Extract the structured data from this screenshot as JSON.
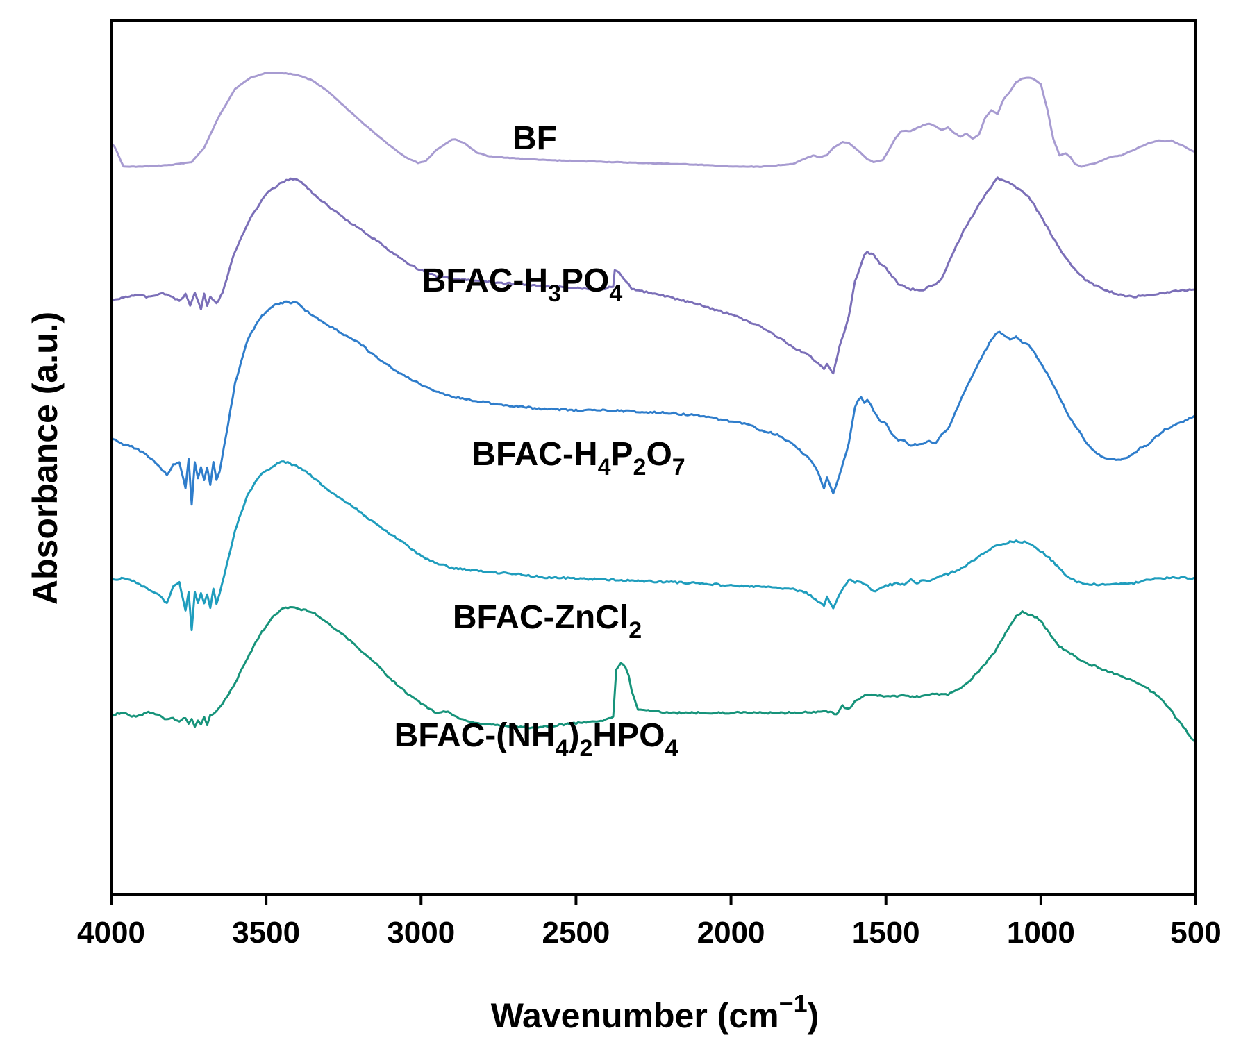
{
  "chart_data": {
    "type": "line",
    "title": "",
    "xlabel": "Wavenumber (cm",
    "xlabel_sup": "−1",
    "xlabel_close": ")",
    "ylabel": "Absorbance (a.u.)",
    "xlim": [
      4000,
      500
    ],
    "x_reversed": true,
    "y_ticks_shown": false,
    "grid": false,
    "x_ticks": [
      "4000",
      "3500",
      "3000",
      "2500",
      "2000",
      "1500",
      "1000",
      "500"
    ],
    "series": [
      {
        "name": "BF",
        "label_parts": [
          {
            "t": "BF"
          }
        ],
        "color": "#a79bd1",
        "x": [
          4000,
          3990,
          3960,
          3900,
          3800,
          3740,
          3700,
          3650,
          3600,
          3550,
          3500,
          3450,
          3400,
          3350,
          3300,
          3250,
          3200,
          3150,
          3100,
          3050,
          3010,
          2985,
          2950,
          2900,
          2890,
          2860,
          2820,
          2780,
          2700,
          2600,
          2500,
          2400,
          2300,
          2200,
          2100,
          2000,
          1900,
          1800,
          1750,
          1735,
          1715,
          1690,
          1670,
          1640,
          1620,
          1590,
          1560,
          1540,
          1510,
          1490,
          1470,
          1450,
          1420,
          1400,
          1380,
          1360,
          1340,
          1320,
          1300,
          1280,
          1260,
          1240,
          1220,
          1200,
          1180,
          1160,
          1140,
          1120,
          1100,
          1080,
          1060,
          1040,
          1020,
          1000,
          980,
          960,
          940,
          920,
          905,
          890,
          870,
          850,
          820,
          780,
          740,
          700,
          660,
          640,
          620,
          600,
          580,
          560,
          540,
          520,
          500
        ],
        "y": [
          0.25,
          0.22,
          0.0,
          0.0,
          0.02,
          0.05,
          0.2,
          0.55,
          0.83,
          0.95,
          1.0,
          1.0,
          0.98,
          0.92,
          0.8,
          0.65,
          0.5,
          0.36,
          0.22,
          0.1,
          0.04,
          0.06,
          0.18,
          0.29,
          0.29,
          0.25,
          0.15,
          0.11,
          0.09,
          0.07,
          0.06,
          0.05,
          0.04,
          0.03,
          0.02,
          0.0,
          0.0,
          0.03,
          0.1,
          0.12,
          0.1,
          0.12,
          0.2,
          0.26,
          0.25,
          0.17,
          0.08,
          0.05,
          0.07,
          0.18,
          0.3,
          0.38,
          0.38,
          0.41,
          0.44,
          0.46,
          0.43,
          0.39,
          0.42,
          0.36,
          0.32,
          0.35,
          0.3,
          0.34,
          0.52,
          0.6,
          0.56,
          0.72,
          0.8,
          0.9,
          0.94,
          0.95,
          0.93,
          0.88,
          0.62,
          0.3,
          0.12,
          0.14,
          0.1,
          0.03,
          0.0,
          0.02,
          0.04,
          0.1,
          0.12,
          0.18,
          0.24,
          0.26,
          0.28,
          0.27,
          0.28,
          0.25,
          0.22,
          0.18,
          0.15
        ],
        "y0": 240,
        "ampl": 135
      },
      {
        "name": "BFAC-H3PO4",
        "label_parts": [
          {
            "t": "BFAC-H"
          },
          {
            "t": "3",
            "sub": true
          },
          {
            "t": "PO"
          },
          {
            "t": "4",
            "sub": true
          }
        ],
        "color": "#7b6fb8",
        "x": [
          4000,
          3960,
          3920,
          3880,
          3840,
          3800,
          3780,
          3760,
          3745,
          3730,
          3710,
          3700,
          3690,
          3680,
          3660,
          3640,
          3600,
          3550,
          3500,
          3450,
          3420,
          3400,
          3380,
          3350,
          3300,
          3250,
          3200,
          3150,
          3100,
          3050,
          3000,
          2950,
          2900,
          2800,
          2700,
          2600,
          2500,
          2420,
          2380,
          2375,
          2360,
          2345,
          2330,
          2320,
          2300,
          2200,
          2100,
          2000,
          1900,
          1850,
          1800,
          1750,
          1720,
          1700,
          1690,
          1670,
          1650,
          1620,
          1600,
          1580,
          1570,
          1560,
          1540,
          1520,
          1500,
          1480,
          1460,
          1440,
          1420,
          1400,
          1380,
          1360,
          1340,
          1320,
          1300,
          1250,
          1200,
          1160,
          1140,
          1120,
          1100,
          1080,
          1060,
          1040,
          1020,
          1000,
          980,
          960,
          940,
          920,
          900,
          870,
          850,
          800,
          750,
          700,
          650,
          600,
          550,
          500
        ],
        "y": [
          0.07,
          0.1,
          0.12,
          0.1,
          0.13,
          0.1,
          0.07,
          0.12,
          0.04,
          0.14,
          0.01,
          0.12,
          0.03,
          0.11,
          0.05,
          0.14,
          0.45,
          0.7,
          0.88,
          0.97,
          1.0,
          0.99,
          0.96,
          0.89,
          0.79,
          0.7,
          0.62,
          0.54,
          0.45,
          0.37,
          0.3,
          0.26,
          0.24,
          0.22,
          0.2,
          0.18,
          0.17,
          0.16,
          0.18,
          0.3,
          0.28,
          0.24,
          0.2,
          0.16,
          0.15,
          0.1,
          0.04,
          -0.03,
          -0.13,
          -0.2,
          -0.28,
          -0.34,
          -0.4,
          -0.44,
          -0.4,
          -0.48,
          -0.28,
          -0.05,
          0.22,
          0.35,
          0.42,
          0.44,
          0.42,
          0.36,
          0.32,
          0.26,
          0.2,
          0.18,
          0.16,
          0.16,
          0.15,
          0.18,
          0.2,
          0.24,
          0.35,
          0.6,
          0.8,
          0.94,
          1.0,
          0.99,
          0.97,
          0.93,
          0.9,
          0.86,
          0.79,
          0.71,
          0.63,
          0.55,
          0.47,
          0.4,
          0.33,
          0.26,
          0.22,
          0.16,
          0.12,
          0.1,
          0.12,
          0.13,
          0.15,
          0.16
        ],
        "y0": 447,
        "ampl": 190
      },
      {
        "name": "BFAC-H4P2O7",
        "label_parts": [
          {
            "t": "BFAC-H"
          },
          {
            "t": "4",
            "sub": true
          },
          {
            "t": "P"
          },
          {
            "t": "2",
            "sub": true
          },
          {
            "t": "O"
          },
          {
            "t": "7",
            "sub": true
          }
        ],
        "color": "#2f7dcb",
        "x": [
          4000,
          3960,
          3920,
          3880,
          3850,
          3820,
          3800,
          3780,
          3760,
          3750,
          3740,
          3730,
          3720,
          3710,
          3700,
          3690,
          3680,
          3670,
          3660,
          3650,
          3630,
          3600,
          3560,
          3520,
          3480,
          3440,
          3400,
          3380,
          3350,
          3300,
          3250,
          3200,
          3150,
          3100,
          3050,
          3000,
          2950,
          2900,
          2800,
          2700,
          2600,
          2500,
          2400,
          2300,
          2200,
          2100,
          2000,
          1950,
          1900,
          1850,
          1800,
          1750,
          1720,
          1700,
          1690,
          1670,
          1650,
          1620,
          1600,
          1590,
          1580,
          1570,
          1560,
          1540,
          1520,
          1500,
          1480,
          1460,
          1440,
          1420,
          1400,
          1380,
          1360,
          1340,
          1320,
          1300,
          1250,
          1200,
          1160,
          1140,
          1120,
          1100,
          1080,
          1060,
          1040,
          1020,
          1000,
          980,
          960,
          940,
          920,
          900,
          870,
          850,
          820,
          780,
          750,
          720,
          700,
          680,
          660,
          640,
          620,
          600,
          580,
          560,
          540,
          520,
          500
        ],
        "y": [
          0.0,
          -0.05,
          -0.08,
          -0.14,
          -0.2,
          -0.28,
          -0.2,
          -0.18,
          -0.38,
          -0.16,
          -0.5,
          -0.18,
          -0.3,
          -0.22,
          -0.32,
          -0.22,
          -0.35,
          -0.18,
          -0.32,
          -0.25,
          0.0,
          0.4,
          0.72,
          0.88,
          0.97,
          1.0,
          0.99,
          0.95,
          0.9,
          0.83,
          0.76,
          0.7,
          0.6,
          0.52,
          0.45,
          0.39,
          0.34,
          0.3,
          0.26,
          0.23,
          0.21,
          0.2,
          0.2,
          0.19,
          0.18,
          0.16,
          0.12,
          0.1,
          0.05,
          0.02,
          -0.05,
          -0.15,
          -0.25,
          -0.38,
          -0.3,
          -0.42,
          -0.28,
          -0.05,
          0.22,
          0.27,
          0.3,
          0.26,
          0.28,
          0.2,
          0.12,
          0.1,
          0.02,
          -0.02,
          -0.03,
          -0.06,
          -0.05,
          -0.05,
          -0.03,
          -0.05,
          0.02,
          0.06,
          0.32,
          0.55,
          0.72,
          0.78,
          0.76,
          0.72,
          0.74,
          0.7,
          0.68,
          0.62,
          0.55,
          0.47,
          0.39,
          0.3,
          0.2,
          0.12,
          0.02,
          -0.05,
          -0.12,
          -0.16,
          -0.17,
          -0.15,
          -0.12,
          -0.08,
          -0.06,
          -0.02,
          0.02,
          0.06,
          0.08,
          0.1,
          0.12,
          0.14,
          0.17
        ],
        "y0": 630,
        "ampl": 195
      },
      {
        "name": "BFAC-ZnCl2",
        "label_parts": [
          {
            "t": "BFAC-ZnCl"
          },
          {
            "t": "2",
            "sub": true
          }
        ],
        "color": "#1f9dbd",
        "x": [
          4000,
          3960,
          3920,
          3880,
          3850,
          3820,
          3800,
          3780,
          3760,
          3750,
          3740,
          3730,
          3720,
          3710,
          3700,
          3690,
          3680,
          3670,
          3660,
          3650,
          3620,
          3600,
          3560,
          3520,
          3480,
          3450,
          3430,
          3410,
          3380,
          3350,
          3300,
          3250,
          3200,
          3150,
          3100,
          3050,
          3000,
          2950,
          2900,
          2800,
          2700,
          2600,
          2500,
          2400,
          2300,
          2200,
          2100,
          2000,
          1900,
          1800,
          1750,
          1720,
          1700,
          1690,
          1670,
          1650,
          1620,
          1600,
          1580,
          1560,
          1540,
          1520,
          1500,
          1480,
          1460,
          1440,
          1420,
          1400,
          1380,
          1360,
          1340,
          1300,
          1250,
          1200,
          1150,
          1100,
          1080,
          1060,
          1040,
          1020,
          1000,
          980,
          960,
          940,
          920,
          900,
          870,
          850,
          800,
          750,
          700,
          660,
          640,
          620,
          600,
          580,
          560,
          540,
          520,
          500
        ],
        "y": [
          0.0,
          0.01,
          -0.02,
          -0.08,
          -0.12,
          -0.2,
          -0.06,
          -0.02,
          -0.26,
          -0.1,
          -0.42,
          -0.1,
          -0.2,
          -0.12,
          -0.2,
          -0.12,
          -0.24,
          -0.08,
          -0.2,
          -0.12,
          0.2,
          0.42,
          0.72,
          0.88,
          0.96,
          1.0,
          0.99,
          0.97,
          0.93,
          0.87,
          0.76,
          0.67,
          0.58,
          0.48,
          0.39,
          0.3,
          0.2,
          0.14,
          0.1,
          0.07,
          0.05,
          0.02,
          0.01,
          0.0,
          -0.01,
          -0.02,
          -0.03,
          -0.05,
          -0.06,
          -0.08,
          -0.12,
          -0.18,
          -0.22,
          -0.15,
          -0.25,
          -0.12,
          0.0,
          -0.02,
          -0.02,
          -0.05,
          -0.1,
          -0.08,
          -0.05,
          -0.04,
          -0.03,
          -0.05,
          0.0,
          -0.03,
          0.0,
          -0.02,
          0.02,
          0.05,
          0.1,
          0.2,
          0.28,
          0.32,
          0.33,
          0.32,
          0.31,
          0.28,
          0.24,
          0.2,
          0.15,
          0.1,
          0.04,
          0.0,
          -0.03,
          -0.04,
          -0.04,
          -0.04,
          -0.03,
          0.0,
          0.0,
          0.02,
          0.01,
          0.02,
          0.02,
          0.02,
          0.01,
          0.02
        ],
        "y0": 835,
        "ampl": 170
      },
      {
        "name": "BFAC-(NH4)2HPO4",
        "label_parts": [
          {
            "t": "BFAC-(NH"
          },
          {
            "t": "4",
            "sub": true
          },
          {
            "t": ")"
          },
          {
            "t": "2",
            "sub": true
          },
          {
            "t": "HPO"
          },
          {
            "t": "4",
            "sub": true
          }
        ],
        "color": "#16937a",
        "x": [
          4000,
          3960,
          3920,
          3880,
          3850,
          3820,
          3800,
          3780,
          3760,
          3750,
          3740,
          3730,
          3720,
          3710,
          3700,
          3690,
          3680,
          3660,
          3640,
          3600,
          3560,
          3520,
          3480,
          3450,
          3430,
          3400,
          3350,
          3300,
          3250,
          3200,
          3150,
          3100,
          3050,
          3000,
          2950,
          2920,
          2900,
          2870,
          2800,
          2700,
          2650,
          2600,
          2500,
          2400,
          2380,
          2370,
          2355,
          2340,
          2330,
          2320,
          2300,
          2200,
          2100,
          2000,
          1900,
          1800,
          1700,
          1680,
          1660,
          1640,
          1620,
          1600,
          1580,
          1560,
          1500,
          1450,
          1400,
          1350,
          1300,
          1250,
          1200,
          1150,
          1100,
          1080,
          1060,
          1040,
          1020,
          1000,
          980,
          960,
          940,
          920,
          900,
          850,
          800,
          750,
          700,
          680,
          660,
          640,
          620,
          600,
          580,
          560,
          540,
          520,
          500
        ],
        "y": [
          0.0,
          0.02,
          -0.02,
          0.03,
          0.0,
          -0.04,
          -0.03,
          -0.06,
          -0.02,
          -0.08,
          -0.03,
          -0.1,
          -0.04,
          -0.08,
          -0.01,
          -0.08,
          0.0,
          0.03,
          0.1,
          0.28,
          0.5,
          0.7,
          0.85,
          0.92,
          0.94,
          0.93,
          0.9,
          0.8,
          0.7,
          0.58,
          0.46,
          0.32,
          0.2,
          0.1,
          0.02,
          0.03,
          0.01,
          -0.04,
          -0.08,
          -0.1,
          -0.11,
          -0.1,
          -0.07,
          -0.04,
          -0.02,
          0.4,
          0.45,
          0.42,
          0.35,
          0.2,
          0.05,
          0.02,
          0.02,
          0.02,
          0.02,
          0.02,
          0.03,
          0.03,
          0.0,
          0.08,
          0.05,
          0.12,
          0.15,
          0.18,
          0.16,
          0.17,
          0.16,
          0.18,
          0.18,
          0.25,
          0.38,
          0.55,
          0.78,
          0.86,
          0.9,
          0.88,
          0.86,
          0.82,
          0.74,
          0.66,
          0.6,
          0.56,
          0.53,
          0.45,
          0.4,
          0.35,
          0.3,
          0.26,
          0.24,
          0.2,
          0.16,
          0.1,
          0.04,
          -0.04,
          -0.1,
          -0.18,
          -0.25
        ],
        "y0": 1030,
        "ampl": 165
      }
    ]
  }
}
